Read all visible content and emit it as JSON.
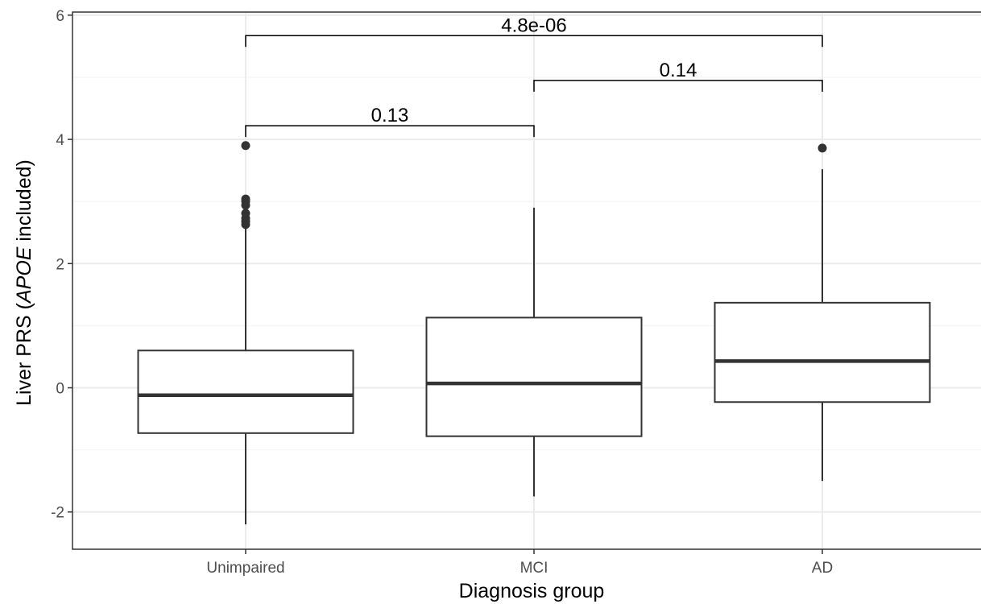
{
  "chart_data": {
    "type": "boxplot",
    "xlabel": "Diagnosis group",
    "ylabel": {
      "prefix": "Liver PRS (",
      "italic": "APOE",
      "suffix": " included)"
    },
    "ylim": [
      -2.6,
      6.05
    ],
    "yticks": [
      -2,
      0,
      2,
      4,
      6
    ],
    "grid": true,
    "categories": [
      "Unimpaired",
      "MCI",
      "AD"
    ],
    "boxes": [
      {
        "category": "Unimpaired",
        "lower_whisker": -2.2,
        "q1": -0.73,
        "median": -0.12,
        "q3": 0.6,
        "upper_whisker": 2.6,
        "outliers": [
          2.63,
          2.68,
          2.73,
          2.81,
          2.94,
          3.0,
          3.04,
          3.9
        ]
      },
      {
        "category": "MCI",
        "lower_whisker": -1.75,
        "q1": -0.78,
        "median": 0.07,
        "q3": 1.13,
        "upper_whisker": 2.9,
        "outliers": []
      },
      {
        "category": "AD",
        "lower_whisker": -1.5,
        "q1": -0.23,
        "median": 0.43,
        "q3": 1.37,
        "upper_whisker": 3.52,
        "outliers": [
          3.86
        ]
      }
    ],
    "comparisons": [
      {
        "from": "Unimpaired",
        "to": "MCI",
        "y": 4.22,
        "label": "0.13"
      },
      {
        "from": "MCI",
        "to": "AD",
        "y": 4.95,
        "label": "0.14"
      },
      {
        "from": "Unimpaired",
        "to": "AD",
        "y": 5.67,
        "label": "4.8e-06"
      }
    ]
  }
}
